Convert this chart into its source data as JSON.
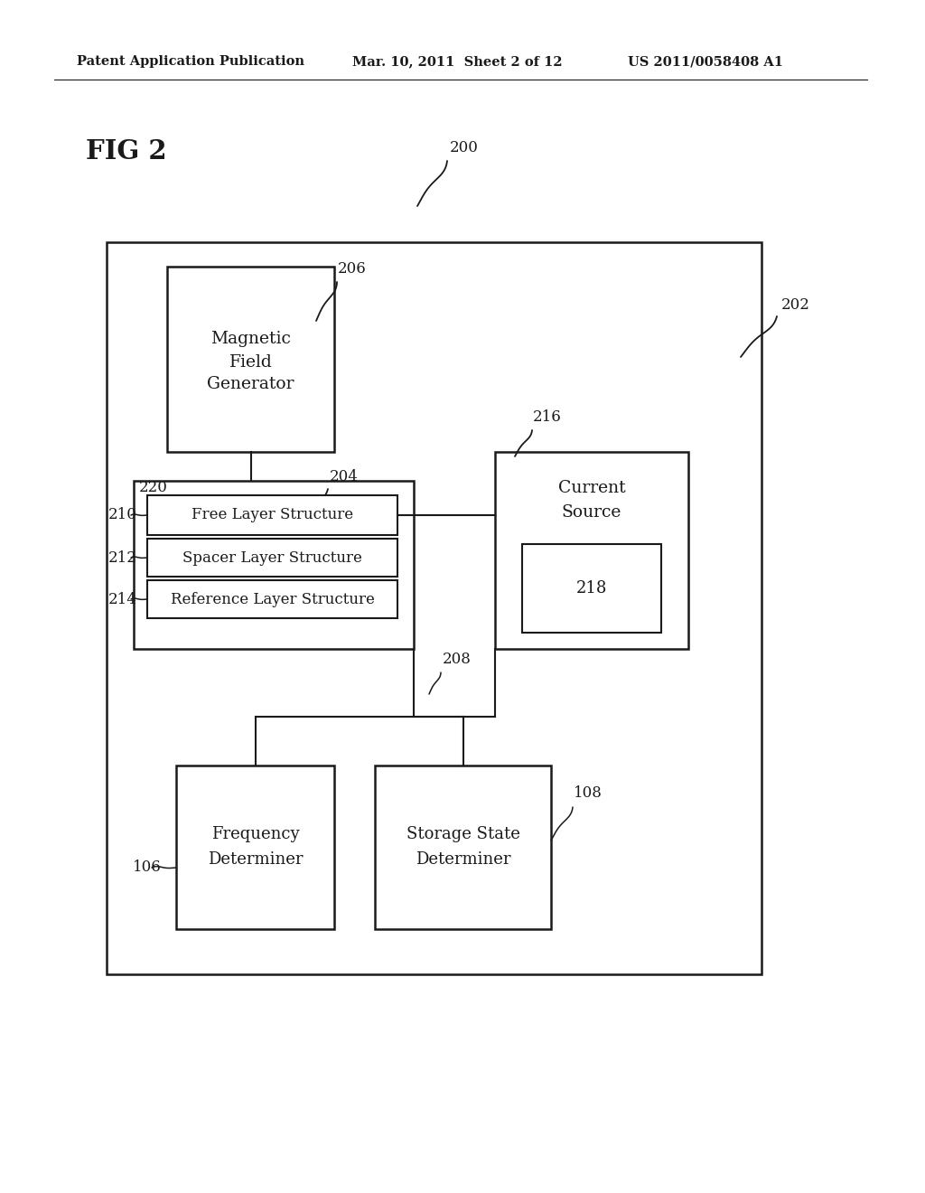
{
  "bg_color": "#ffffff",
  "header_left": "Patent Application Publication",
  "header_mid": "Mar. 10, 2011  Sheet 2 of 12",
  "header_right": "US 2011/0058408 A1",
  "fig_label": "FIG 2",
  "ref_200": "200",
  "ref_202": "202",
  "ref_204": "204",
  "ref_206": "206",
  "ref_208": "208",
  "ref_210": "210",
  "ref_212": "212",
  "ref_214": "214",
  "ref_216": "216",
  "ref_218": "218",
  "ref_220": "220",
  "ref_106": "106",
  "ref_108": "108",
  "line_color": "#1a1a1a",
  "text_color": "#1a1a1a"
}
